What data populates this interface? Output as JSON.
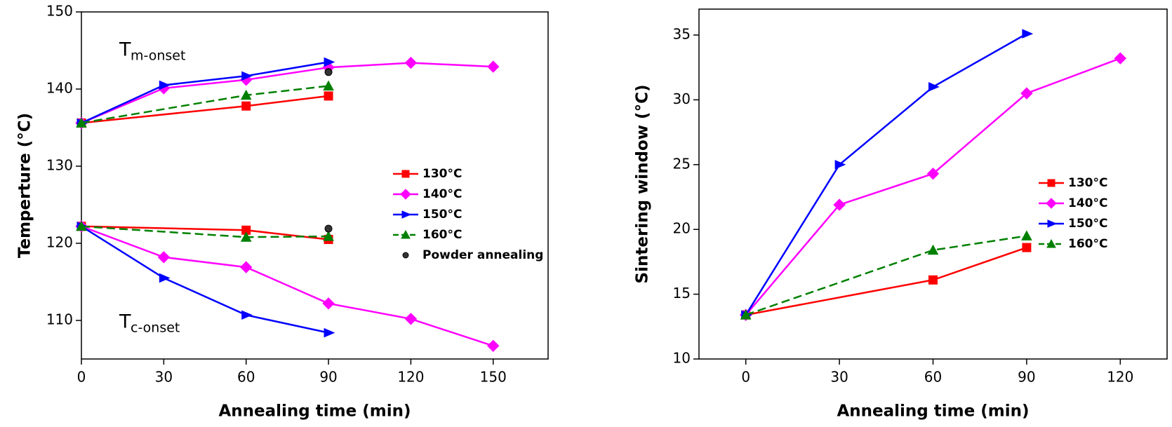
{
  "chart_data": [
    {
      "type": "line",
      "xlabel": "Annealing time (min)",
      "ylabel": "Temperture (°C)",
      "xlim": [
        0,
        170
      ],
      "ylim": [
        105,
        150
      ],
      "xticks": [
        0,
        30,
        60,
        90,
        120,
        150
      ],
      "yticks": [
        110,
        120,
        130,
        140,
        150
      ],
      "annotations": [
        {
          "text": "T",
          "sub": "m-onset"
        },
        {
          "text": "T",
          "sub": "c-onset"
        }
      ],
      "series": [
        {
          "name": "130°C",
          "color": "#ff0000",
          "marker": "square",
          "dash": false,
          "line": true,
          "x": [
            0,
            60,
            90
          ],
          "values": [
            135.6,
            137.8,
            139.1
          ],
          "values_c": [
            122.2,
            121.7,
            120.5
          ]
        },
        {
          "name": "140°C",
          "color": "#ff00ff",
          "marker": "diamond",
          "dash": false,
          "line": true,
          "x": [
            0,
            30,
            60,
            90,
            120,
            150
          ],
          "values": [
            135.6,
            140.1,
            141.2,
            142.8,
            143.4,
            142.9
          ],
          "values_c": [
            122.2,
            118.2,
            116.9,
            112.2,
            110.2,
            106.7
          ]
        },
        {
          "name": "150°C",
          "color": "#0000ff",
          "marker": "triangle-right",
          "dash": false,
          "line": true,
          "x": [
            0,
            30,
            60,
            90
          ],
          "values": [
            135.6,
            140.5,
            141.7,
            143.5
          ],
          "values_c": [
            122.2,
            115.5,
            110.7,
            108.4
          ]
        },
        {
          "name": "160°C",
          "color": "#008000",
          "marker": "triangle-up",
          "dash": true,
          "line": true,
          "x": [
            0,
            60,
            90
          ],
          "values": [
            135.6,
            139.2,
            140.4
          ],
          "values_c": [
            122.2,
            120.8,
            120.9
          ]
        },
        {
          "name": "Powder annealing",
          "color": "#000000",
          "marker": "circle",
          "dash": false,
          "line": false,
          "x": [
            90
          ],
          "values": [
            142.2
          ],
          "values_c": [
            121.9
          ]
        }
      ]
    },
    {
      "type": "line",
      "xlabel": "Annealing time (min)",
      "ylabel": "Sintering window (°C)",
      "xlim": [
        -15,
        135
      ],
      "ylim": [
        10,
        37
      ],
      "xticks": [
        0,
        30,
        60,
        90,
        120
      ],
      "yticks": [
        10,
        15,
        20,
        25,
        30,
        35
      ],
      "series": [
        {
          "name": "130°C",
          "color": "#ff0000",
          "marker": "square",
          "dash": false,
          "line": true,
          "x": [
            0,
            60,
            90
          ],
          "values": [
            13.4,
            16.1,
            18.6
          ]
        },
        {
          "name": "140°C",
          "color": "#ff00ff",
          "marker": "diamond",
          "dash": false,
          "line": true,
          "x": [
            0,
            30,
            60,
            90,
            120
          ],
          "values": [
            13.4,
            21.9,
            24.3,
            30.5,
            33.2
          ]
        },
        {
          "name": "150°C",
          "color": "#0000ff",
          "marker": "triangle-right",
          "dash": false,
          "line": true,
          "x": [
            0,
            30,
            60,
            90
          ],
          "values": [
            13.4,
            25.0,
            31.0,
            35.1
          ]
        },
        {
          "name": "160°C",
          "color": "#008000",
          "marker": "triangle-up",
          "dash": true,
          "line": true,
          "x": [
            0,
            60,
            90
          ],
          "values": [
            13.4,
            18.4,
            19.5
          ]
        }
      ]
    }
  ]
}
